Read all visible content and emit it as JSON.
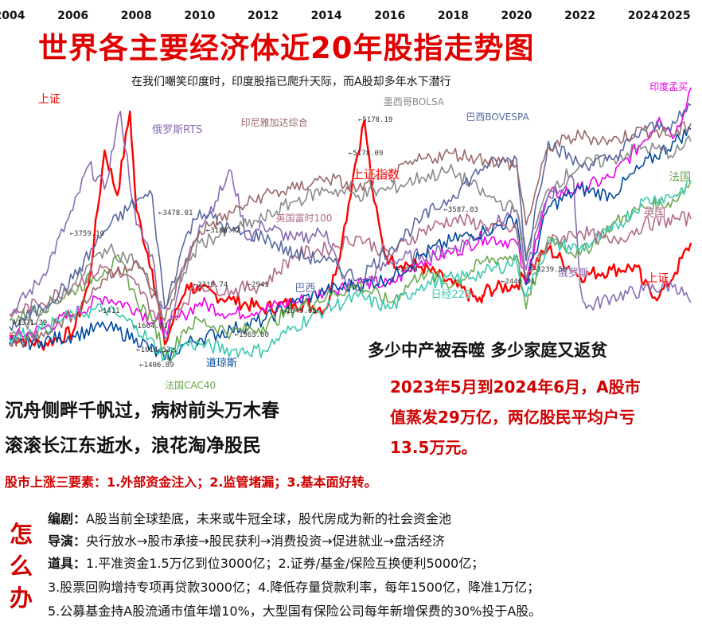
{
  "title": "世界各主要经济体近20年股指走势图",
  "subtitle": "在我们嘲笑印度时，印度股指已爬升天际，而A股却多年水下潜行",
  "colors": {
    "shanghai": "#ff0000",
    "india": "#ee00ee",
    "russia": "#8b6bb5",
    "dow": "#004a9f",
    "france": "#6aa84f",
    "nikkei": "#3cc8b0",
    "uk": "#b06a8a",
    "mexico": "#8a8a8a",
    "brazil": "#5a6aa0",
    "indonesia": "#9a6a6a",
    "germany": "#2a8a8a"
  },
  "chart_data": {
    "type": "line",
    "title": "世界各主要经济体近20年股指走势图",
    "x_ticks": [
      "2004",
      "2006",
      "2008",
      "2010",
      "2012",
      "2014",
      "2016",
      "2018",
      "2020",
      "2022",
      "2024",
      "2025"
    ],
    "xlim": [
      2004,
      2025.6
    ],
    "ylim": [
      0,
      100
    ],
    "grid": false,
    "series": [
      {
        "name": "上证",
        "color_key": "shanghai",
        "x": [
          2004,
          2005,
          2005.5,
          2006,
          2006.5,
          2007,
          2007.4,
          2007.8,
          2008,
          2008.5,
          2008.9,
          2009.3,
          2009.6,
          2010,
          2011,
          2012,
          2013,
          2014,
          2014.5,
          2014.9,
          2015.2,
          2015.5,
          2015.8,
          2016,
          2017,
          2018,
          2018.9,
          2019,
          2020,
          2021,
          2022,
          2023,
          2023.8,
          2024,
          2024.5,
          2025,
          2025.5
        ],
        "y": [
          13,
          10,
          12,
          14,
          30,
          75,
          60,
          88,
          55,
          35,
          10,
          22,
          30,
          28,
          25,
          22,
          24,
          22,
          45,
          70,
          85,
          58,
          42,
          38,
          36,
          30,
          24,
          28,
          30,
          42,
          33,
          35,
          36,
          30,
          26,
          34,
          44
        ]
      },
      {
        "name": "印度孟买",
        "color_key": "india",
        "x": [
          2004,
          2005,
          2006,
          2007,
          2008,
          2008.9,
          2009.5,
          2010,
          2011,
          2012,
          2013,
          2014,
          2015,
          2016,
          2017,
          2018,
          2019,
          2020,
          2020.3,
          2020.6,
          2021,
          2022,
          2023,
          2024,
          2024.5,
          2025,
          2025.5
        ],
        "y": [
          12,
          15,
          20,
          26,
          22,
          15,
          20,
          24,
          20,
          22,
          24,
          28,
          31,
          30,
          38,
          41,
          46,
          44,
          30,
          45,
          60,
          62,
          66,
          78,
          86,
          80,
          96
        ]
      },
      {
        "name": "俄罗斯RTS",
        "color_key": "russia",
        "x": [
          2004,
          2005,
          2006,
          2006.5,
          2007,
          2007.5,
          2008,
          2008.5,
          2008.9,
          2009.5,
          2010,
          2010.5,
          2011,
          2011.5,
          2012,
          2013,
          2014,
          2014.5,
          2015,
          2016,
          2017,
          2018,
          2019,
          2020,
          2020.3,
          2021,
          2021.8,
          2022,
          2022.2,
          2023,
          2024,
          2025,
          2025.5
        ],
        "y": [
          20,
          32,
          55,
          70,
          62,
          88,
          50,
          40,
          12,
          35,
          50,
          58,
          68,
          45,
          50,
          45,
          48,
          32,
          28,
          38,
          40,
          42,
          48,
          55,
          35,
          60,
          65,
          30,
          22,
          26,
          28,
          30,
          24
        ]
      },
      {
        "name": "道琼斯",
        "color_key": "dow",
        "x": [
          2004,
          2005,
          2006,
          2007,
          2008,
          2008.9,
          2009.5,
          2010,
          2011,
          2012,
          2013,
          2014,
          2015,
          2016,
          2017,
          2018,
          2019,
          2020,
          2020.3,
          2021,
          2022,
          2023,
          2024,
          2025,
          2025.5
        ],
        "y": [
          10,
          11,
          13,
          16,
          12,
          5,
          10,
          12,
          15,
          18,
          24,
          28,
          30,
          32,
          40,
          45,
          48,
          52,
          30,
          56,
          62,
          60,
          70,
          78,
          82
        ]
      },
      {
        "name": "法国CAC40",
        "color_key": "france",
        "x": [
          2004,
          2005,
          2006,
          2007,
          2007.5,
          2008,
          2008.5,
          2009,
          2009.5,
          2010,
          2011,
          2012,
          2013,
          2014,
          2015,
          2016,
          2017,
          2018,
          2019,
          2020,
          2020.3,
          2021,
          2022,
          2023,
          2024,
          2025,
          2025.5
        ],
        "y": [
          18,
          22,
          28,
          35,
          38,
          25,
          18,
          5,
          15,
          18,
          14,
          16,
          22,
          26,
          30,
          24,
          34,
          30,
          38,
          40,
          22,
          46,
          40,
          50,
          56,
          58,
          65
        ]
      },
      {
        "name": "日经225",
        "color_key": "nikkei",
        "x": [
          2004,
          2005,
          2006,
          2007,
          2008,
          2008.9,
          2009.5,
          2010,
          2011,
          2012,
          2013,
          2014,
          2015,
          2016,
          2017,
          2018,
          2019,
          2020,
          2020.3,
          2021,
          2022,
          2023,
          2024,
          2025,
          2025.5
        ],
        "y": [
          12,
          15,
          20,
          22,
          16,
          6,
          10,
          10,
          8,
          8,
          16,
          22,
          26,
          22,
          30,
          32,
          34,
          38,
          26,
          44,
          42,
          48,
          58,
          60,
          64
        ]
      },
      {
        "name": "英国富时100",
        "color_key": "uk",
        "x": [
          2004,
          2005,
          2006,
          2007,
          2008,
          2008.9,
          2009.5,
          2010,
          2011,
          2012,
          2013,
          2014,
          2015,
          2016,
          2017,
          2018,
          2019,
          2020,
          2020.3,
          2021,
          2022,
          2023,
          2024,
          2025,
          2025.5
        ],
        "y": [
          20,
          24,
          30,
          36,
          30,
          15,
          24,
          30,
          28,
          30,
          40,
          42,
          46,
          40,
          48,
          52,
          50,
          48,
          32,
          44,
          48,
          44,
          50,
          52,
          52
        ]
      },
      {
        "name": "墨西哥BOLSA",
        "color_key": "mexico",
        "x": [
          2004,
          2005,
          2006,
          2007,
          2008,
          2008.9,
          2009.5,
          2010,
          2011,
          2012,
          2013,
          2014,
          2015,
          2016,
          2017,
          2018,
          2019,
          2020,
          2020.3,
          2021,
          2022,
          2023,
          2024,
          2025,
          2025.5
        ],
        "y": [
          14,
          20,
          30,
          42,
          38,
          22,
          34,
          44,
          48,
          52,
          58,
          62,
          60,
          62,
          66,
          68,
          60,
          55,
          40,
          62,
          70,
          72,
          76,
          74,
          78
        ]
      },
      {
        "name": "巴西BOVESPA",
        "color_key": "brazil",
        "x": [
          2004,
          2005,
          2006,
          2007,
          2008,
          2008.5,
          2008.9,
          2009.5,
          2010,
          2011,
          2012,
          2013,
          2014,
          2015,
          2016,
          2017,
          2018,
          2019,
          2020,
          2020.3,
          2021,
          2022,
          2023,
          2024,
          2025,
          2025.5
        ],
        "y": [
          16,
          22,
          32,
          48,
          58,
          60,
          22,
          44,
          55,
          48,
          46,
          40,
          38,
          32,
          42,
          52,
          60,
          70,
          72,
          38,
          78,
          70,
          72,
          82,
          84,
          90
        ]
      },
      {
        "name": "印尼雅加达综合",
        "color_key": "indonesia",
        "x": [
          2004,
          2005,
          2006,
          2007,
          2008,
          2008.9,
          2009.5,
          2010,
          2011,
          2012,
          2013,
          2014,
          2015,
          2016,
          2017,
          2018,
          2019,
          2020,
          2020.3,
          2021,
          2022,
          2023,
          2024,
          2025,
          2025.5
        ],
        "y": [
          10,
          14,
          20,
          32,
          38,
          18,
          36,
          48,
          54,
          60,
          62,
          66,
          62,
          66,
          72,
          74,
          72,
          70,
          50,
          76,
          80,
          78,
          82,
          80,
          84
        ]
      }
    ],
    "annotations": [
      {
        "text": "上证",
        "x": 2004.9,
        "y": 93,
        "color_key": "shanghai",
        "size": 14
      },
      {
        "text": "上证指数",
        "x": 2014.8,
        "y": 68,
        "color_key": "shanghai",
        "size": 15
      },
      {
        "text": "上证",
        "x": 2024.1,
        "y": 33,
        "color_key": "shanghai",
        "size": 14
      },
      {
        "text": "俄罗斯RTS",
        "x": 2008.5,
        "y": 83,
        "color_key": "russia",
        "size": 13
      },
      {
        "text": "俄罗斯",
        "x": 2021.3,
        "y": 35,
        "color_key": "russia",
        "size": 13
      },
      {
        "text": "印尼雅加达综合",
        "x": 2011.3,
        "y": 85,
        "color_key": "indonesia",
        "size": 12
      },
      {
        "text": "墨西哥BOLSA",
        "x": 2015.8,
        "y": 92,
        "color_key": "mexico",
        "size": 12
      },
      {
        "text": "巴西BOVESPA",
        "x": 2018.4,
        "y": 87,
        "color_key": "brazil",
        "size": 12
      },
      {
        "text": "印度孟买",
        "x": 2024.2,
        "y": 97,
        "color_key": "india",
        "size": 12
      },
      {
        "text": "英国富时100",
        "x": 2012.4,
        "y": 53,
        "color_key": "uk",
        "size": 12
      },
      {
        "text": "英国",
        "x": 2024,
        "y": 55,
        "color_key": "uk",
        "size": 14
      },
      {
        "text": "法国",
        "x": 2024.8,
        "y": 67,
        "color_key": "france",
        "size": 14
      },
      {
        "text": "日经225",
        "x": 2017.3,
        "y": 28,
        "color_key": "nikkei",
        "size": 13
      },
      {
        "text": "道琼斯",
        "x": 2010.2,
        "y": 5,
        "color_key": "dow",
        "size": 13
      },
      {
        "text": "法国CAC40",
        "x": 2008.9,
        "y": -3,
        "color_key": "france",
        "size": 12
      },
      {
        "text": "巴西",
        "x": 2013,
        "y": 30,
        "color_key": "brazil",
        "size": 13
      }
    ],
    "value_notes": [
      {
        "text": "5178.19",
        "x": 2015,
        "y": 85
      },
      {
        "text": "5178.09",
        "x": 2014.7,
        "y": 74
      },
      {
        "text": "3478.01",
        "x": 2008.7,
        "y": 54
      },
      {
        "text": "3186.72",
        "x": 2010.2,
        "y": 48
      },
      {
        "text": "3759.10",
        "x": 2005.9,
        "y": 47
      },
      {
        "text": "2319.74",
        "x": 2009.8,
        "y": 30
      },
      {
        "text": "2941",
        "x": 2011.5,
        "y": 30
      },
      {
        "text": "1849.65",
        "x": 2012.6,
        "y": 21
      },
      {
        "text": "1965.80",
        "x": 2011.1,
        "y": 13
      },
      {
        "text": "1664.93",
        "x": 2007.9,
        "y": 16
      },
      {
        "text": "1014.53",
        "x": 2008,
        "y": 8
      },
      {
        "text": "1406.89",
        "x": 2008.1,
        "y": 3
      },
      {
        "text": "1411",
        "x": 2006.8,
        "y": 21
      },
      {
        "text": "1371.39",
        "x": 2004.1,
        "y": 17
      },
      {
        "text": "3587.03",
        "x": 2017.7,
        "y": 55
      },
      {
        "text": "2440.91",
        "x": 2019.5,
        "y": 31
      },
      {
        "text": "3239.50",
        "x": 2020.5,
        "y": 35
      },
      {
        "text": "2638",
        "x": 2016.2,
        "y": 35
      }
    ]
  },
  "headline": "多少中产被吞噬 多少家庭又返贫",
  "loss_lines": [
    "2023年5月到2024年6月，A股市",
    "值蒸发29万亿，两亿股民平均户亏",
    "13.5万元。"
  ],
  "poem_lines": [
    "沉舟侧畔千帆过，病树前头万木春",
    "滚滚长江东逝水，浪花淘净股民"
  ],
  "factors": "股市上涨三要素：1.外部资金注入；2.监管堵漏；3.基本面好转。",
  "how_chars": [
    "怎",
    "么",
    "办"
  ],
  "plan": [
    {
      "key": "编剧：",
      "text": "A股当前全球垫底，未来或牛冠全球，股代房成为新的社会资金池"
    },
    {
      "key": "导演：",
      "text": "央行放水→股市承接→股民获利→消费投资→促进就业→盘活经济"
    },
    {
      "key": "道具：",
      "text": "1.平准资金1.5万亿到位3000亿；2.证券/基金/保险互换便利5000亿；"
    },
    {
      "key": "",
      "text": "3.股票回购增持专项再贷款3000亿；4.降低存量贷款利率，每年1500亿，降准1万亿；"
    },
    {
      "key": "",
      "text": "5.公募基金持A股流通市值年增10%，大型国有保险公司每年新增保费的30%投于A股。"
    }
  ]
}
